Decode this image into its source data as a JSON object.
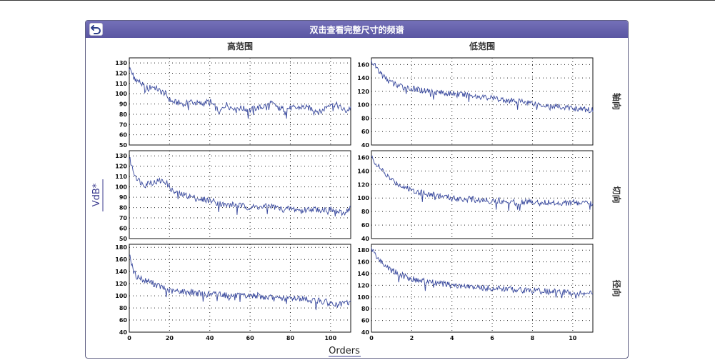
{
  "title": "双击查看完整尺寸的频谱",
  "col_labels": [
    "高范围",
    "低范围"
  ],
  "row_labels": [
    "轴向",
    "切向",
    "径向"
  ],
  "ylabel": "VdB*",
  "xlabel": "Orders",
  "colors": {
    "line": "#3a4a9e",
    "titlebar": "#6662ae",
    "border": "#5e5e82",
    "label": "#3b3b8f"
  },
  "icons": {
    "back": "back-arrow-icon"
  },
  "chart_data": [
    {
      "type": "line",
      "position": "high-range axial",
      "xlim": [
        0,
        110
      ],
      "ylim": [
        50,
        135
      ],
      "xticks": [
        0,
        20,
        40,
        60,
        80,
        100
      ],
      "yticks": [
        50,
        60,
        70,
        80,
        90,
        100,
        110,
        120,
        130
      ],
      "x": [
        0,
        1,
        2,
        4,
        6,
        8,
        10,
        12,
        15,
        18,
        20,
        22,
        25,
        28,
        30,
        33,
        36,
        40,
        42,
        45,
        48,
        50,
        55,
        58,
        60,
        63,
        66,
        70,
        73,
        76,
        80,
        83,
        86,
        90,
        95,
        100,
        103,
        106,
        108,
        110
      ],
      "y": [
        125,
        122,
        118,
        113,
        110,
        105,
        106,
        107,
        103,
        100,
        94,
        92,
        91,
        90,
        93,
        91,
        90,
        93,
        88,
        82,
        90,
        87,
        86,
        85,
        84,
        86,
        87,
        91,
        88,
        85,
        86,
        86,
        87,
        86,
        82,
        91,
        89,
        85,
        83,
        87
      ]
    },
    {
      "type": "line",
      "position": "high-range tangential",
      "xlim": [
        0,
        110
      ],
      "ylim": [
        50,
        135
      ],
      "xticks": [
        0,
        20,
        40,
        60,
        80,
        100
      ],
      "yticks": [
        50,
        60,
        70,
        80,
        90,
        100,
        110,
        120,
        130
      ],
      "x": [
        0,
        1,
        2,
        4,
        6,
        8,
        10,
        12,
        15,
        18,
        20,
        22,
        25,
        28,
        30,
        33,
        36,
        40,
        42,
        45,
        48,
        50,
        55,
        58,
        60,
        63,
        66,
        70,
        73,
        76,
        80,
        83,
        86,
        90,
        95,
        100,
        103,
        106,
        108,
        110
      ],
      "y": [
        128,
        122,
        115,
        108,
        104,
        102,
        105,
        104,
        106,
        105,
        100,
        95,
        93,
        92,
        91,
        89,
        88,
        87,
        86,
        84,
        82,
        83,
        82,
        81,
        80,
        81,
        80,
        82,
        80,
        78,
        79,
        78,
        77,
        79,
        78,
        78,
        76,
        74,
        77,
        80
      ]
    },
    {
      "type": "line",
      "position": "high-range radial",
      "xlim": [
        0,
        110
      ],
      "ylim": [
        40,
        185
      ],
      "xticks": [
        0,
        20,
        40,
        60,
        80,
        100
      ],
      "yticks": [
        40,
        60,
        80,
        100,
        120,
        140,
        160,
        180
      ],
      "x": [
        0,
        1,
        2,
        4,
        6,
        8,
        10,
        12,
        15,
        18,
        20,
        22,
        25,
        28,
        30,
        33,
        36,
        40,
        42,
        45,
        48,
        50,
        55,
        58,
        60,
        63,
        66,
        70,
        73,
        76,
        80,
        83,
        86,
        90,
        95,
        100,
        103,
        106,
        108,
        110
      ],
      "y": [
        172,
        155,
        140,
        132,
        128,
        125,
        124,
        120,
        116,
        111,
        108,
        107,
        108,
        106,
        107,
        105,
        103,
        102,
        103,
        104,
        101,
        100,
        100,
        99,
        100,
        101,
        98,
        97,
        95,
        96,
        96,
        97,
        95,
        93,
        92,
        88,
        84,
        86,
        89,
        88
      ]
    },
    {
      "type": "line",
      "position": "low-range axial",
      "xlim": [
        0,
        11
      ],
      "ylim": [
        40,
        170
      ],
      "xticks": [
        0,
        2,
        4,
        6,
        8,
        10
      ],
      "yticks": [
        40,
        60,
        80,
        100,
        120,
        140,
        160
      ],
      "x": [
        0,
        0.1,
        0.2,
        0.4,
        0.6,
        0.8,
        1.0,
        1.3,
        1.6,
        2.0,
        2.4,
        2.8,
        3.2,
        3.6,
        4.0,
        4.5,
        5.0,
        5.5,
        6.0,
        6.5,
        7.0,
        7.5,
        8.0,
        8.5,
        9.0,
        9.5,
        10.0,
        10.5,
        11.0
      ],
      "y": [
        165,
        162,
        158,
        150,
        142,
        137,
        133,
        129,
        126,
        124,
        122,
        121,
        119,
        118,
        117,
        115,
        114,
        112,
        110,
        108,
        106,
        105,
        103,
        100,
        98,
        96,
        95,
        93,
        92
      ]
    },
    {
      "type": "line",
      "position": "low-range tangential",
      "xlim": [
        0,
        11
      ],
      "ylim": [
        40,
        170
      ],
      "xticks": [
        0,
        2,
        4,
        6,
        8,
        10
      ],
      "yticks": [
        40,
        60,
        80,
        100,
        120,
        140,
        160
      ],
      "x": [
        0,
        0.1,
        0.2,
        0.4,
        0.6,
        0.8,
        1.0,
        1.3,
        1.6,
        2.0,
        2.4,
        2.8,
        3.2,
        3.6,
        4.0,
        4.5,
        5.0,
        5.5,
        6.0,
        6.5,
        7.0,
        7.5,
        8.0,
        8.5,
        9.0,
        9.5,
        10.0,
        10.5,
        11.0
      ],
      "y": [
        160,
        157,
        152,
        145,
        138,
        132,
        127,
        121,
        117,
        112,
        109,
        106,
        104,
        102,
        100,
        99,
        98,
        97,
        96,
        96,
        95,
        95,
        94,
        94,
        93,
        93,
        93,
        92,
        92
      ]
    },
    {
      "type": "line",
      "position": "low-range radial",
      "xlim": [
        0,
        11
      ],
      "ylim": [
        40,
        190
      ],
      "xticks": [
        0,
        2,
        4,
        6,
        8,
        10
      ],
      "yticks": [
        40,
        60,
        80,
        100,
        120,
        140,
        160,
        180
      ],
      "x": [
        0,
        0.1,
        0.2,
        0.4,
        0.6,
        0.8,
        1.0,
        1.3,
        1.6,
        2.0,
        2.4,
        2.8,
        3.2,
        3.6,
        4.0,
        4.5,
        5.0,
        5.5,
        6.0,
        6.5,
        7.0,
        7.5,
        8.0,
        8.5,
        9.0,
        9.5,
        10.0,
        10.5,
        11.0
      ],
      "y": [
        182,
        178,
        172,
        163,
        156,
        151,
        146,
        140,
        136,
        131,
        128,
        126,
        124,
        122,
        120,
        118,
        117,
        116,
        115,
        114,
        113,
        112,
        111,
        110,
        109,
        108,
        107,
        106,
        106
      ]
    }
  ]
}
